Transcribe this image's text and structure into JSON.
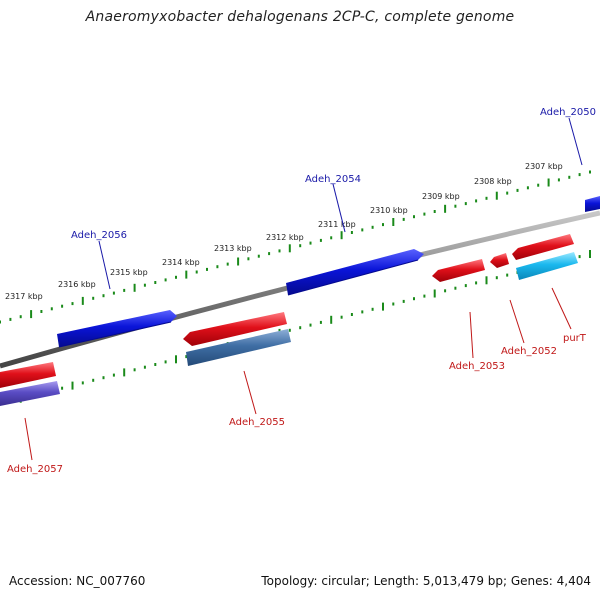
{
  "title": "Anaeromyxobacter dehalogenans 2CP-C, complete genome",
  "footer": {
    "accession": "Accession: NC_007760",
    "summary": "Topology: circular; Length: 5,013,479 bp; Genes: 4,404"
  },
  "colors": {
    "forward_gene": "#0a14d8",
    "reverse_gene": "#e0101a",
    "reverse_gene_light": "#1ab8ee",
    "reverse_gene_steel": "#3f6ea4",
    "reverse_gene_violet": "#5a4cc4",
    "backbone": "#7a7a7a",
    "ticks": "#1a8a1a",
    "forward_label": "#1a1aa8",
    "reverse_label": "#c01818"
  },
  "scale_labels": [
    "2307 kbp",
    "2308 kbp",
    "2309 kbp",
    "2310 kbp",
    "2311 kbp",
    "2312 kbp",
    "2313 kbp",
    "2314 kbp",
    "2315 kbp",
    "2316 kbp",
    "2317 kbp"
  ],
  "forward_genes": [
    {
      "name": "Adeh_2050"
    },
    {
      "name": "Adeh_2054"
    },
    {
      "name": "Adeh_2056"
    }
  ],
  "reverse_genes": [
    {
      "name": "purT"
    },
    {
      "name": "Adeh_2052"
    },
    {
      "name": "Adeh_2053"
    },
    {
      "name": "Adeh_2055"
    },
    {
      "name": "Adeh_2057"
    }
  ]
}
